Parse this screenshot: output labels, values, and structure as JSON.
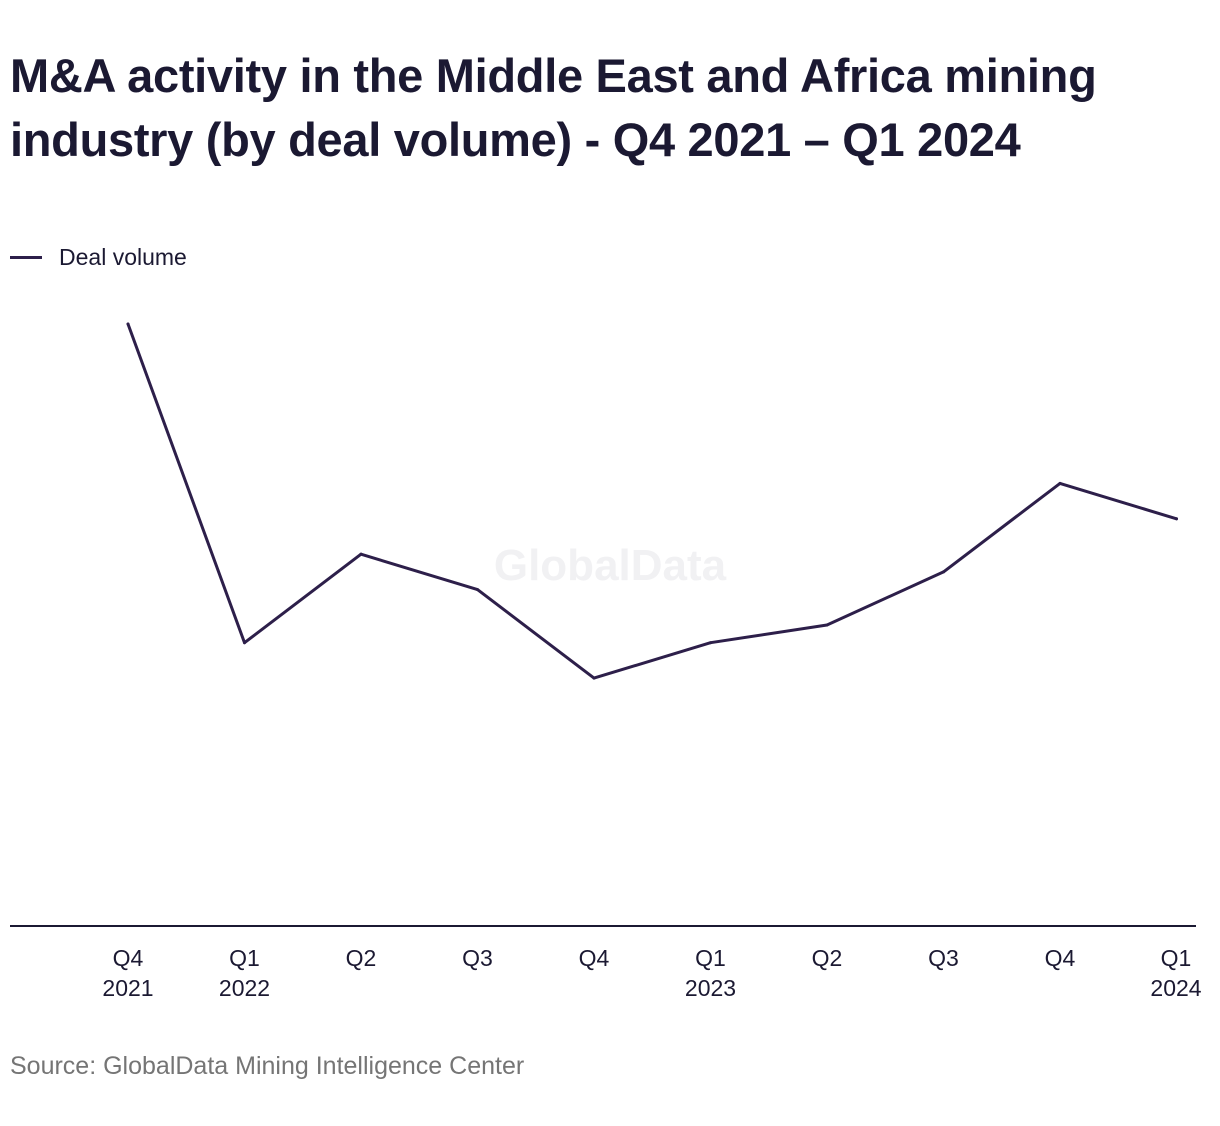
{
  "title": "M&A activity in the Middle East and Africa mining industry (by deal volume) - Q4 2021 – Q1 2024",
  "legend": {
    "label": "Deal volume",
    "color": "#2d1f4a"
  },
  "watermark": "GlobalData",
  "source": "Source: GlobalData Mining Intelligence Center",
  "colors": {
    "line": "#2d1f4a",
    "axis": "#1b1932",
    "text": "#1b1932",
    "source": "#757575",
    "watermark": "#f1f1f3"
  },
  "chart_data": {
    "type": "line",
    "title": "M&A activity in the Middle East and Africa mining industry (by deal volume) - Q4 2021 – Q1 2024",
    "xlabel": "",
    "ylabel": "",
    "categories": [
      [
        "Q4",
        "2021"
      ],
      [
        "Q1",
        "2022"
      ],
      [
        "Q2"
      ],
      [
        "Q3"
      ],
      [
        "Q4"
      ],
      [
        "Q1",
        "2023"
      ],
      [
        "Q2"
      ],
      [
        "Q3"
      ],
      [
        "Q4"
      ],
      [
        "Q1",
        "2024"
      ]
    ],
    "series": [
      {
        "name": "Deal volume",
        "values": [
          68,
          32,
          42,
          38,
          28,
          32,
          34,
          40,
          50,
          46
        ]
      }
    ],
    "ylim": [
      0,
      68
    ],
    "y_axis_labels": "hidden",
    "grid": false,
    "legend_position": "top-left"
  }
}
